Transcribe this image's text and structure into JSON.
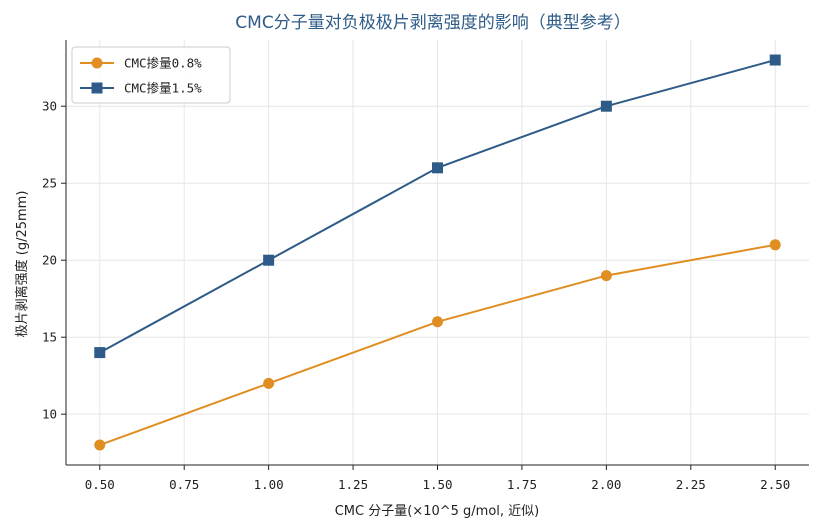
{
  "chart_data": {
    "type": "line",
    "title": "CMC分子量对负极极片剥离强度的影响（典型参考）",
    "xlabel": "CMC 分子量(×10^5 g/mol, 近似)",
    "ylabel": "极片剥离强度 (g/25mm)",
    "x": [
      0.5,
      1.0,
      1.5,
      2.0,
      2.5
    ],
    "xlim": [
      0.4,
      2.6
    ],
    "ylim": [
      6.7,
      34.3
    ],
    "xticks": [
      0.5,
      0.75,
      1.0,
      1.25,
      1.5,
      1.75,
      2.0,
      2.25,
      2.5
    ],
    "xtick_labels": [
      "0.50",
      "0.75",
      "1.00",
      "1.25",
      "1.50",
      "1.75",
      "2.00",
      "2.25",
      "2.50"
    ],
    "yticks": [
      10,
      15,
      20,
      25,
      30
    ],
    "ytick_labels": [
      "10",
      "15",
      "20",
      "25",
      "30"
    ],
    "grid": true,
    "legend_position": "top-left",
    "series": [
      {
        "name": "CMC掺量0.8%",
        "values": [
          8,
          12,
          16,
          19,
          21
        ],
        "color": "#e08e22",
        "marker": "circle"
      },
      {
        "name": "CMC掺量1.5%",
        "values": [
          14,
          20,
          26,
          30,
          33
        ],
        "color": "#2e5b87",
        "marker": "square"
      }
    ]
  }
}
